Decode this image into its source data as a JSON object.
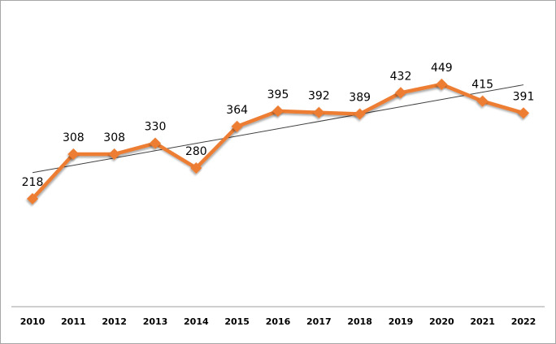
{
  "chart_data": {
    "type": "line",
    "title": "",
    "xlabel": "",
    "ylabel": "",
    "categories": [
      "2010",
      "2011",
      "2012",
      "2013",
      "2014",
      "2015",
      "2016",
      "2017",
      "2018",
      "2019",
      "2020",
      "2021",
      "2022"
    ],
    "series": [
      {
        "name": "Value",
        "values": [
          218,
          308,
          308,
          330,
          280,
          364,
          395,
          392,
          389,
          432,
          449,
          415,
          391
        ],
        "color": "#ed7d31"
      }
    ],
    "trendline": {
      "type": "linear",
      "color": "#404040"
    },
    "ylim": [
      0,
      450
    ],
    "grid": false,
    "legend": "none",
    "data_labels": true
  }
}
